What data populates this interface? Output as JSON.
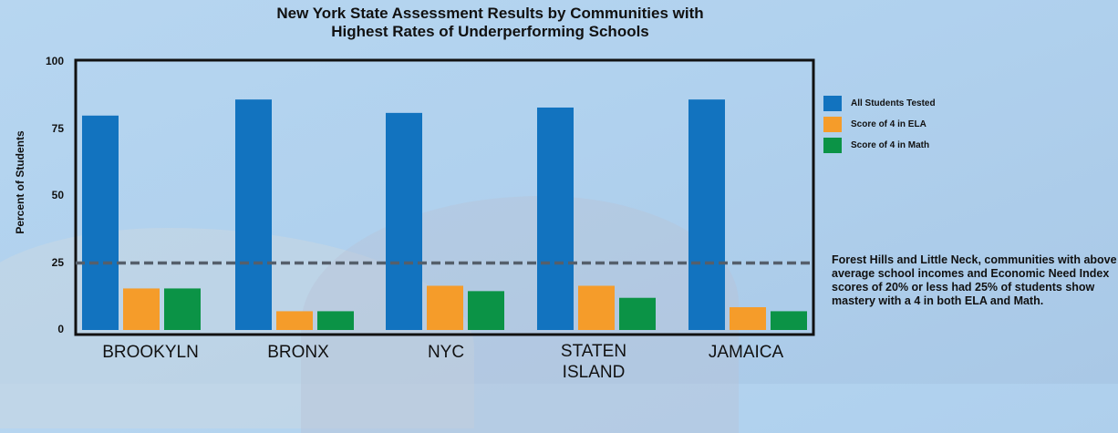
{
  "chart_data": {
    "type": "bar",
    "title": "New York State Assessment Results by Communities with Highest Rates of Underperforming Schools",
    "title_lines": [
      "New York State Assessment Results by Communities with",
      "Highest Rates of Underperforming Schools"
    ],
    "ylabel": "Percent of Students",
    "xlabel": "",
    "categories": [
      "BROOKYLN",
      "BRONX",
      "NYC",
      "STATEN ISLAND",
      "JAMAICA"
    ],
    "category_lines": [
      [
        "BROOKYLN"
      ],
      [
        "BRONX"
      ],
      [
        "NYC"
      ],
      [
        "STATEN",
        "ISLAND"
      ],
      [
        "JAMAICA"
      ]
    ],
    "ylim": [
      0,
      100
    ],
    "yticks": [
      0,
      25,
      50,
      75,
      100
    ],
    "grid": false,
    "legend_position": "right",
    "series": [
      {
        "name": "All Students Tested",
        "color": "#1273bf",
        "values": [
          80,
          86,
          81,
          83,
          86
        ]
      },
      {
        "name": "Score of 4 in ELA",
        "color": "#f59c2a",
        "values": [
          15.5,
          7,
          16.5,
          16.5,
          8.5
        ]
      },
      {
        "name": "Score of 4 in Math",
        "color": "#0b9346",
        "values": [
          15.5,
          7,
          14.5,
          12,
          7
        ]
      }
    ],
    "reference_line": {
      "value": 25,
      "style": "dashed",
      "color": "#555f6b"
    },
    "annotation": "Forest Hills and Little Neck, communities with above average school incomes and Economic Need Index scores of 20% or less had 25% of students show mastery with a 4 in both ELA and Math."
  }
}
